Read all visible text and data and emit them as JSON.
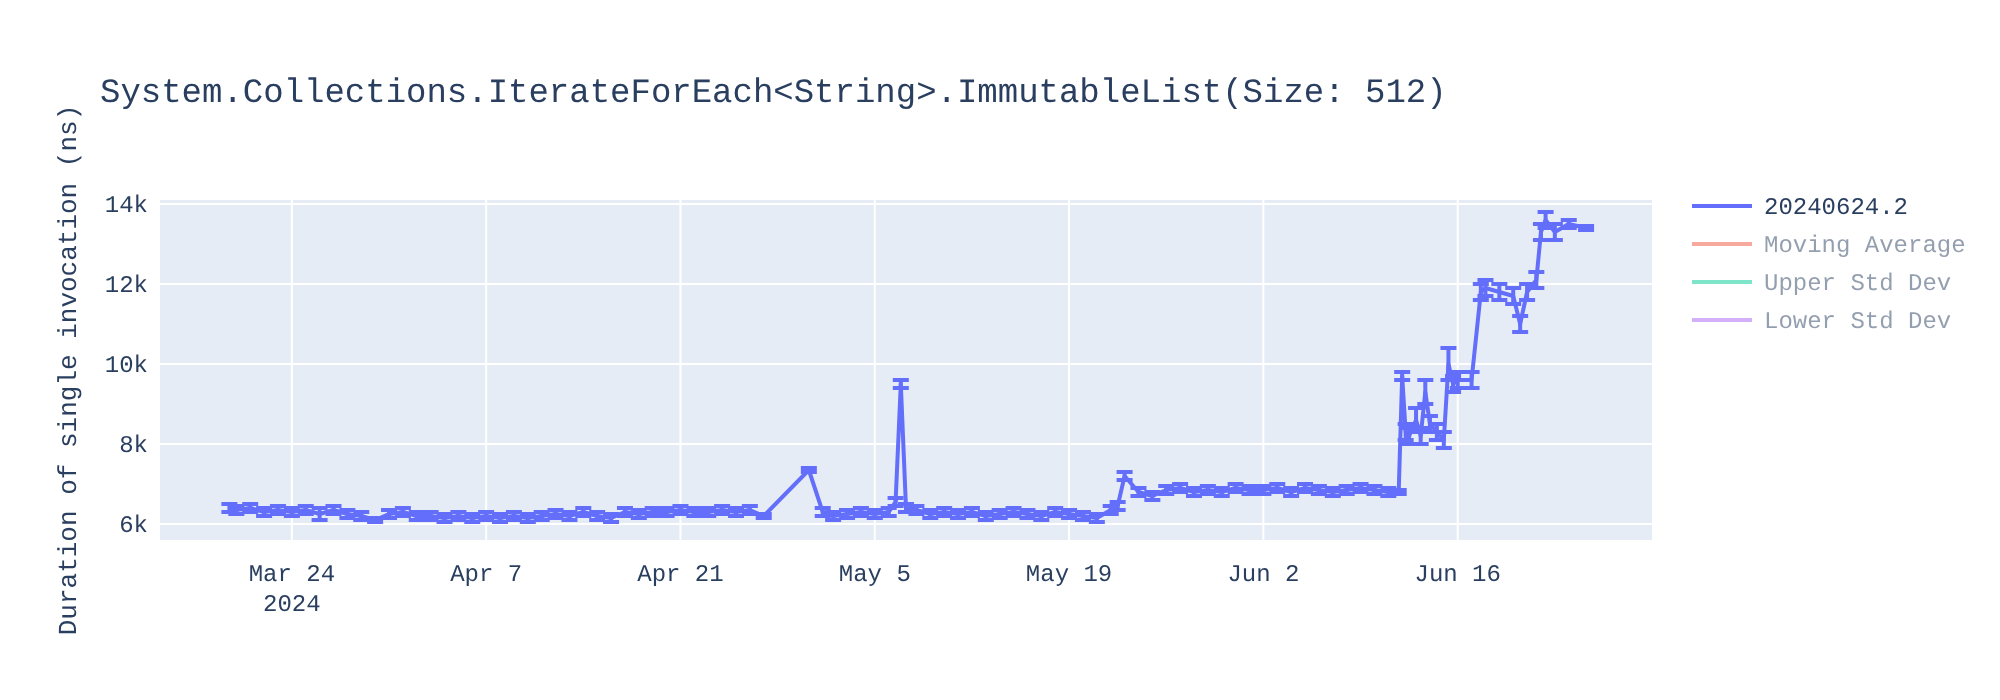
{
  "chart_data": {
    "type": "line",
    "title": "System.Collections.IterateForEach<String>.ImmutableList(Size: 512)",
    "ylabel": "Duration of single invocation (ns)",
    "x": [
      "2024-03-19T12:00",
      "2024-03-20",
      "2024-03-21",
      "2024-03-22",
      "2024-03-23",
      "2024-03-24",
      "2024-03-25",
      "2024-03-26",
      "2024-03-27",
      "2024-03-28",
      "2024-03-29",
      "2024-03-30",
      "2024-03-31",
      "2024-04-01",
      "2024-04-02",
      "2024-04-03",
      "2024-04-04",
      "2024-04-05",
      "2024-04-06",
      "2024-04-07",
      "2024-04-08",
      "2024-04-09",
      "2024-04-10",
      "2024-04-11",
      "2024-04-12",
      "2024-04-13",
      "2024-04-14",
      "2024-04-15",
      "2024-04-16",
      "2024-04-17",
      "2024-04-18",
      "2024-04-19",
      "2024-04-20",
      "2024-04-21",
      "2024-04-22",
      "2024-04-23",
      "2024-04-24",
      "2024-04-25",
      "2024-04-26",
      "2024-04-27",
      "2024-04-30T06:00",
      "2024-05-01T06:00",
      "2024-05-02",
      "2024-05-03",
      "2024-05-04",
      "2024-05-05",
      "2024-05-06",
      "2024-05-06T12:00",
      "2024-05-06T21:00",
      "2024-05-07T06:00",
      "2024-05-08",
      "2024-05-09",
      "2024-05-10",
      "2024-05-11",
      "2024-05-12",
      "2024-05-13",
      "2024-05-14",
      "2024-05-15",
      "2024-05-16",
      "2024-05-17",
      "2024-05-18",
      "2024-05-19",
      "2024-05-20",
      "2024-05-21",
      "2024-05-22",
      "2024-05-22T12:00",
      "2024-05-23",
      "2024-05-24",
      "2024-05-25",
      "2024-05-26",
      "2024-05-27",
      "2024-05-28",
      "2024-05-29",
      "2024-05-30",
      "2024-05-31",
      "2024-06-01",
      "2024-06-02",
      "2024-06-03",
      "2024-06-04",
      "2024-06-05",
      "2024-06-06",
      "2024-06-07",
      "2024-06-08",
      "2024-06-09",
      "2024-06-10",
      "2024-06-11",
      "2024-06-11T18:00",
      "2024-06-12",
      "2024-06-12T06:00",
      "2024-06-12T12:00",
      "2024-06-13",
      "2024-06-13T08:00",
      "2024-06-13T16:00",
      "2024-06-14",
      "2024-06-14T12:00",
      "2024-06-15",
      "2024-06-15T08:00",
      "2024-06-15T16:00",
      "2024-06-16",
      "2024-06-17",
      "2024-06-17T16:00",
      "2024-06-18",
      "2024-06-19",
      "2024-06-20",
      "2024-06-20T12:00",
      "2024-06-21",
      "2024-06-21T16:00",
      "2024-06-22",
      "2024-06-22T08:00",
      "2024-06-23",
      "2024-06-24",
      "2024-06-25T06:00"
    ],
    "series": [
      {
        "name": "20240624.2",
        "color": "#636efa",
        "values": [
          6400,
          6350,
          6400,
          6300,
          6350,
          6300,
          6350,
          6250,
          6350,
          6250,
          6200,
          6100,
          6250,
          6300,
          6200,
          6200,
          6150,
          6200,
          6150,
          6200,
          6150,
          6200,
          6150,
          6200,
          6250,
          6200,
          6300,
          6200,
          6150,
          6300,
          6250,
          6300,
          6300,
          6350,
          6300,
          6300,
          6350,
          6300,
          6350,
          6200,
          7350,
          6300,
          6200,
          6250,
          6300,
          6250,
          6300,
          6550,
          9500,
          6400,
          6350,
          6250,
          6300,
          6250,
          6300,
          6200,
          6250,
          6300,
          6250,
          6200,
          6300,
          6250,
          6200,
          6150,
          6350,
          6450,
          7200,
          6800,
          6700,
          6850,
          6900,
          6800,
          6850,
          6800,
          6900,
          6850,
          6850,
          6900,
          6800,
          6900,
          6850,
          6800,
          6850,
          6900,
          6850,
          6800,
          6800,
          9700,
          8300,
          8200,
          8600,
          8200,
          9300,
          8500,
          8300,
          8100,
          10000,
          9500,
          9600,
          9600,
          11800,
          11900,
          11800,
          11700,
          11000,
          11800,
          12100,
          13300,
          13600,
          13300,
          13500,
          13400
        ],
        "errors": [
          100,
          100,
          100,
          100,
          100,
          100,
          100,
          150,
          100,
          100,
          100,
          50,
          100,
          100,
          100,
          100,
          100,
          100,
          100,
          100,
          100,
          100,
          100,
          100,
          100,
          100,
          100,
          100,
          100,
          100,
          100,
          100,
          100,
          100,
          100,
          100,
          100,
          100,
          100,
          50,
          50,
          100,
          100,
          100,
          100,
          100,
          100,
          100,
          100,
          100,
          100,
          100,
          100,
          100,
          100,
          100,
          100,
          100,
          100,
          100,
          100,
          100,
          100,
          100,
          100,
          100,
          100,
          100,
          100,
          100,
          100,
          100,
          100,
          100,
          100,
          100,
          100,
          100,
          100,
          100,
          100,
          100,
          100,
          100,
          100,
          100,
          50,
          100,
          200,
          200,
          300,
          200,
          300,
          200,
          200,
          200,
          400,
          200,
          200,
          200,
          200,
          200,
          200,
          200,
          200,
          200,
          200,
          200,
          200,
          200,
          100,
          50
        ]
      },
      {
        "name": "Moving Average",
        "color": "#ef553b",
        "values": [
          null,
          null,
          null,
          null,
          null,
          null,
          null,
          null,
          null,
          null,
          null,
          null,
          null,
          null,
          null,
          null,
          null,
          null,
          null,
          null,
          null,
          null,
          null,
          null,
          null,
          null,
          null,
          null,
          null,
          null,
          null,
          null,
          null,
          null,
          null,
          null,
          null,
          null,
          null,
          null,
          null,
          null,
          null,
          null,
          null,
          null,
          null,
          null,
          null,
          null,
          null,
          null,
          null,
          null,
          null,
          null,
          null,
          null,
          null,
          null,
          null,
          null,
          null,
          null,
          null,
          null,
          null,
          null,
          null,
          null,
          null,
          null,
          null,
          null,
          null,
          null,
          null,
          null,
          null,
          null,
          null,
          null,
          null,
          null,
          null,
          null,
          null,
          null,
          null,
          null,
          null,
          null,
          null,
          null,
          null,
          null,
          null,
          null,
          null,
          null,
          null,
          null,
          null,
          null,
          null,
          null,
          null,
          null,
          null,
          null,
          null,
          null
        ]
      },
      {
        "name": "Upper Std Dev",
        "color": "#00cc96",
        "values": [
          null,
          null,
          null,
          null,
          null,
          null,
          null,
          null,
          null,
          null,
          null,
          null,
          null,
          null,
          null,
          null,
          null,
          null,
          null,
          null,
          null,
          null,
          null,
          null,
          null,
          null,
          null,
          null,
          null,
          null,
          null,
          null,
          null,
          null,
          null,
          null,
          null,
          null,
          null,
          null,
          null,
          null,
          null,
          null,
          null,
          null,
          null,
          null,
          null,
          null,
          null,
          null,
          null,
          null,
          null,
          null,
          null,
          null,
          null,
          null,
          null,
          null,
          null,
          null,
          null,
          null,
          null,
          null,
          null,
          null,
          null,
          null,
          null,
          null,
          null,
          null,
          null,
          null,
          null,
          null,
          null,
          null,
          null,
          null,
          null,
          null,
          null,
          null,
          null,
          null,
          null,
          null,
          null,
          null,
          null,
          null,
          null,
          null,
          null,
          null,
          null,
          null,
          null,
          null,
          null,
          null,
          null,
          null,
          null,
          null,
          null,
          null
        ]
      },
      {
        "name": "Lower Std Dev",
        "color": "#ab63fa",
        "values": [
          null,
          null,
          null,
          null,
          null,
          null,
          null,
          null,
          null,
          null,
          null,
          null,
          null,
          null,
          null,
          null,
          null,
          null,
          null,
          null,
          null,
          null,
          null,
          null,
          null,
          null,
          null,
          null,
          null,
          null,
          null,
          null,
          null,
          null,
          null,
          null,
          null,
          null,
          null,
          null,
          null,
          null,
          null,
          null,
          null,
          null,
          null,
          null,
          null,
          null,
          null,
          null,
          null,
          null,
          null,
          null,
          null,
          null,
          null,
          null,
          null,
          null,
          null,
          null,
          null,
          null,
          null,
          null,
          null,
          null,
          null,
          null,
          null,
          null,
          null,
          null,
          null,
          null,
          null,
          null,
          null,
          null,
          null,
          null,
          null,
          null,
          null,
          null,
          null,
          null,
          null,
          null,
          null,
          null,
          null,
          null,
          null,
          null,
          null,
          null,
          null,
          null,
          null,
          null,
          null,
          null,
          null,
          null,
          null,
          null,
          null,
          null
        ]
      }
    ],
    "xlim": [
      "2024-03-14T12:00",
      "2024-06-30"
    ],
    "xticks": [
      {
        "value": "2024-03-24",
        "label": "Mar 24\n2024"
      },
      {
        "value": "2024-04-07",
        "label": "Apr 7"
      },
      {
        "value": "2024-04-21",
        "label": "Apr 21"
      },
      {
        "value": "2024-05-05",
        "label": "May 5"
      },
      {
        "value": "2024-05-19",
        "label": "May 19"
      },
      {
        "value": "2024-06-02",
        "label": "Jun 2"
      },
      {
        "value": "2024-06-16",
        "label": "Jun 16"
      }
    ],
    "ylim": [
      5600,
      14100
    ],
    "yticks": [
      {
        "value": 6000,
        "label": "6k"
      },
      {
        "value": 8000,
        "label": "8k"
      },
      {
        "value": 10000,
        "label": "10k"
      },
      {
        "value": 12000,
        "label": "12k"
      },
      {
        "value": 14000,
        "label": "14k"
      }
    ],
    "grid": true,
    "legend": "right"
  }
}
